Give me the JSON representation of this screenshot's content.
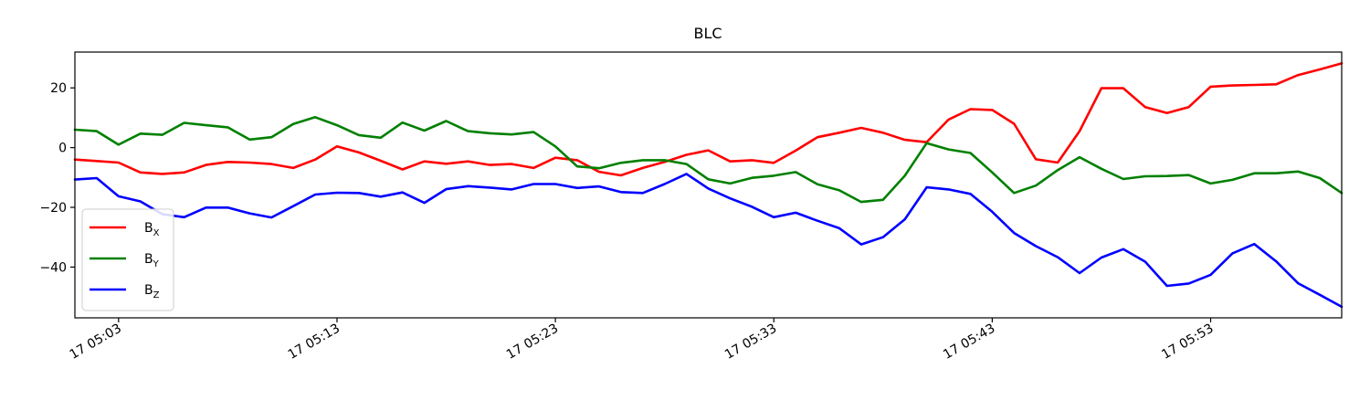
{
  "chart_data": {
    "type": "line",
    "title": "BLC",
    "xlabel": "",
    "ylabel": "",
    "x_tick_labels": [
      "17 05:03",
      "17 05:13",
      "17 05:23",
      "17 05:33",
      "17 05:43",
      "17 05:53"
    ],
    "x_ticks_min": [
      3,
      13,
      23,
      33,
      43,
      53
    ],
    "y_ticks": [
      -40,
      -20,
      0,
      20
    ],
    "xlim_min": [
      1,
      59
    ],
    "ylim": [
      -57,
      32
    ],
    "grid": false,
    "legend_position": "lower-left",
    "x_min": [
      1,
      2,
      3,
      4,
      5,
      6,
      7,
      8,
      9,
      10,
      11,
      12,
      13,
      14,
      15,
      16,
      17,
      18,
      19,
      20,
      21,
      22,
      23,
      24,
      25,
      26,
      27,
      28,
      29,
      30,
      31,
      32,
      33,
      34,
      35,
      36,
      37,
      38,
      39,
      40,
      41,
      42,
      43,
      44,
      45,
      46,
      47,
      48,
      49,
      50,
      51,
      52,
      53,
      54,
      55,
      56,
      57,
      58,
      59
    ],
    "series": [
      {
        "name": "B",
        "subscript": "X",
        "color": "#ff0000",
        "values": [
          -4,
          -4.5,
          -5,
          -8.3,
          -8.8,
          -8.3,
          -5.8,
          -4.8,
          -5,
          -5.5,
          -6.8,
          -4,
          0.4,
          -1.6,
          -4.4,
          -7.3,
          -4.6,
          -5.4,
          -4.6,
          -5.8,
          -5.5,
          -6.8,
          -3.4,
          -4.2,
          -8.1,
          -9.3,
          -6.8,
          -4.8,
          -2.4,
          -0.9,
          -4.6,
          -4.2,
          -5.1,
          -1,
          3.5,
          5,
          6.6,
          5,
          2.6,
          1.8,
          9.4,
          12.9,
          12.6,
          8,
          -3.9,
          -5,
          5.5,
          19.9,
          19.9,
          13.6,
          11.6,
          13.6,
          20.4,
          20.8,
          21,
          21.2,
          24.3,
          26.2,
          28.2
        ]
      },
      {
        "name": "B",
        "subscript": "Y",
        "color": "#008000",
        "values": [
          6,
          5.5,
          1,
          4.7,
          4.3,
          8.3,
          7.5,
          6.8,
          2.7,
          3.5,
          7.9,
          10.2,
          7.5,
          4.2,
          3.3,
          8.4,
          5.7,
          8.9,
          5.5,
          4.8,
          4.4,
          5.2,
          0.4,
          -6.3,
          -6.9,
          -5.1,
          -4.2,
          -4.2,
          -5.5,
          -10.6,
          -12,
          -10.1,
          -9.4,
          -8.2,
          -12.3,
          -14.3,
          -18.2,
          -17.5,
          -9.4,
          1.5,
          -0.6,
          -1.8,
          -8.3,
          -15.2,
          -12.7,
          -7.5,
          -3.2,
          -7.1,
          -10.5,
          -9.6,
          -9.5,
          -9.2,
          -12,
          -10.8,
          -8.6,
          -8.6,
          -8,
          -10.2,
          -15.2
        ]
      },
      {
        "name": "B",
        "subscript": "Z",
        "color": "#0000ff",
        "values": [
          -10.7,
          -10.2,
          -16.3,
          -18,
          -22.3,
          -23.3,
          -20.1,
          -20.1,
          -22,
          -23.4,
          -19.6,
          -15.7,
          -15.1,
          -15.2,
          -16.4,
          -15,
          -18.5,
          -13.9,
          -12.9,
          -13.4,
          -14,
          -12.2,
          -12.2,
          -13.5,
          -13,
          -14.9,
          -15.2,
          -12.2,
          -8.8,
          -13.7,
          -17,
          -19.8,
          -23.3,
          -21.8,
          -24.5,
          -27,
          -32.4,
          -30,
          -24,
          -13.3,
          -14,
          -15.5,
          -21.5,
          -28.6,
          -33,
          -36.7,
          -42,
          -36.8,
          -34,
          -38.2,
          -46.3,
          -45.5,
          -42.6,
          -35.4,
          -32.3,
          -38.1,
          -45.4,
          -49.3,
          -53.3
        ]
      }
    ]
  }
}
